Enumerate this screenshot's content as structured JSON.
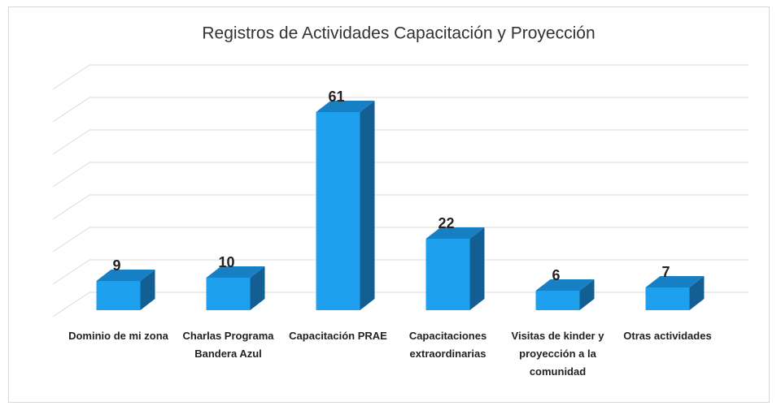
{
  "chart_data": {
    "type": "bar",
    "title": "Registros de Actividades Capacitación y Proyección",
    "categories": [
      "Dominio de mi zona",
      "Charlas Programa Bandera Azul",
      "Capacitación PRAE",
      "Capacitaciones extraordinarias",
      "Visitas de kinder y proyección a la comunidad",
      "Otras actividades"
    ],
    "values": [
      9,
      10,
      61,
      22,
      6,
      7
    ],
    "color": "#1fa0ef",
    "ylim": [
      0,
      70
    ],
    "yticks": [
      0,
      10,
      20,
      30,
      40,
      50,
      60,
      70
    ],
    "grid": true
  }
}
